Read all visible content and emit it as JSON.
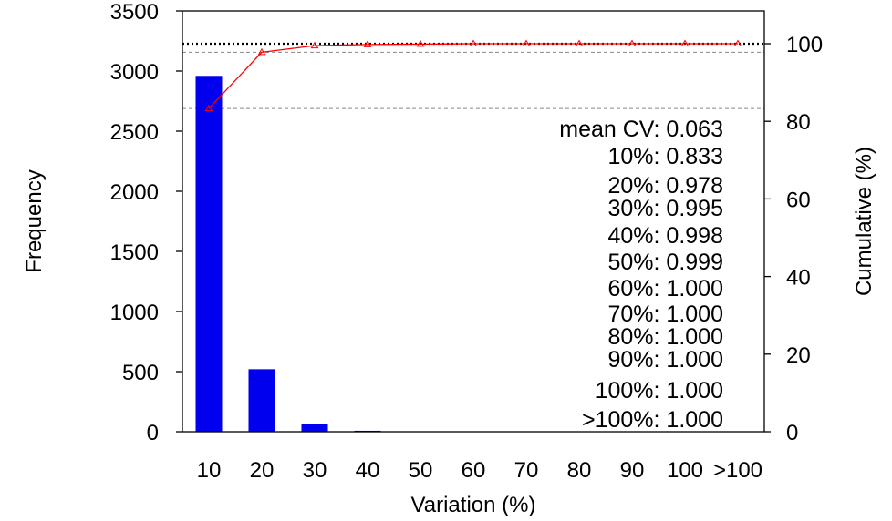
{
  "chart_data": {
    "type": "bar",
    "xlabel": "Variation (%)",
    "ylabel": "Frequency",
    "y2label": "Cumulative (%)",
    "categories": [
      "10",
      "20",
      "30",
      "40",
      "50",
      "60",
      "70",
      "80",
      "90",
      "100",
      ">100"
    ],
    "values": [
      2960,
      520,
      65,
      8,
      2,
      2,
      1,
      1,
      0,
      0,
      0
    ],
    "cumulative": [
      83.3,
      97.8,
      99.5,
      99.8,
      99.9,
      100.0,
      100.0,
      100.0,
      100.0,
      100.0,
      100.0
    ],
    "ylim": [
      0,
      3500
    ],
    "yticks": [
      "0",
      "500",
      "1000",
      "1500",
      "2000",
      "2500",
      "3000",
      "3500"
    ],
    "y2lim": [
      0,
      100
    ],
    "y2ticks": [
      "0",
      "20",
      "40",
      "60",
      "80",
      "100"
    ],
    "bar_color": "#0000ee",
    "line_color": "#ff0000",
    "reference_lines": [
      {
        "value": 100,
        "style": "dotted",
        "color": "#000000"
      },
      {
        "value": 97.8,
        "style": "dashed",
        "color": "#888888"
      },
      {
        "value": 83.3,
        "style": "dashed",
        "color": "#888888"
      }
    ],
    "annotations": [
      "mean CV: 0.063",
      "10%: 0.833",
      "20%: 0.978",
      "30%: 0.995",
      "40%: 0.998",
      "50%: 0.999",
      "60%: 1.000",
      "70%: 1.000",
      "80%: 1.000",
      "90%: 1.000",
      "100%: 1.000",
      ">100%: 1.000"
    ]
  }
}
